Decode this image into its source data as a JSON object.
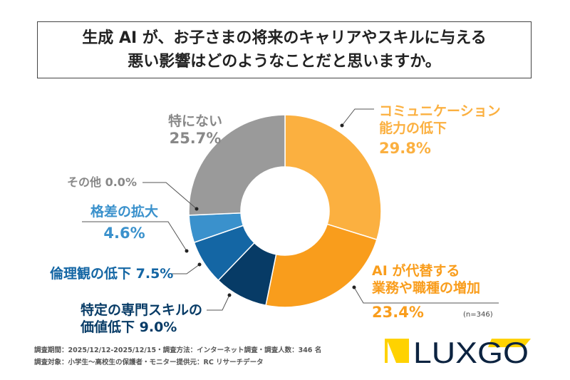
{
  "title": {
    "line1": "生成 AI が、お子さまの将来のキャリアやスキルに与える",
    "line2": "悪い影響はどのようなことだと思いますか。"
  },
  "chart_data": {
    "type": "pie",
    "donut": true,
    "start": "top, clockwise",
    "categories": [
      "コミュニケーション能力の低下",
      "AI が代替する業務や職種の増加",
      "特定の専門スキルの価値低下",
      "倫理観の低下",
      "格差の拡大",
      "その他",
      "特にない"
    ],
    "values": [
      29.8,
      23.4,
      9.0,
      7.5,
      4.6,
      0.0,
      25.7
    ],
    "unit": "%",
    "colors": [
      "#FBB040",
      "#F99D1C",
      "#073B66",
      "#1466A4",
      "#3A91CC",
      "#9A9A9A",
      "#9A9A9A"
    ],
    "labels": {
      "comm": {
        "l1": "コミュニケーション",
        "l2": "能力の低下",
        "pct": "29.8%"
      },
      "ai": {
        "l1": "AI が代替する",
        "l2": "業務や職種の増加",
        "pct": "23.4%"
      },
      "skill": {
        "l1": "特定の専門スキルの",
        "l2": "価値低下",
        "pct": "9.0%"
      },
      "ethics": {
        "l1": "倫理観の低下",
        "pct": "7.5%"
      },
      "gap": {
        "l1": "格差の拡大",
        "pct": "4.6%"
      },
      "other": {
        "l1": "その他",
        "pct": "0.0%"
      },
      "none": {
        "l1": "特にない",
        "pct": "25.7%"
      }
    },
    "sample": "(n=346)"
  },
  "footer": {
    "line1": "調査期間：2025/12/12-2025/12/15・調査方法：インターネット調査・調査人数：346 名",
    "line2": "調査対象：小学生～高校生の保護者・モニター提供元：RC リサーチデータ"
  },
  "logo": {
    "text": "LUXGO"
  }
}
